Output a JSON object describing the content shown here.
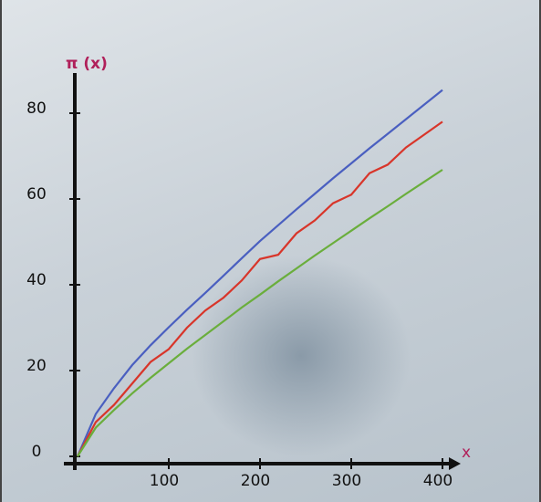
{
  "chart_data": {
    "type": "line",
    "y_label": "π (x)",
    "x_label": "x",
    "x": [
      0,
      20,
      40,
      60,
      80,
      100,
      120,
      140,
      160,
      180,
      200,
      220,
      240,
      260,
      280,
      300,
      320,
      340,
      360,
      380,
      400
    ],
    "series": [
      {
        "color": "#4a5fc0",
        "values": [
          0,
          9.9,
          15.9,
          21.3,
          25.9,
          30.1,
          34.2,
          38.1,
          42.1,
          46.2,
          50.2,
          53.9,
          57.6,
          61.2,
          64.8,
          68.3,
          71.8,
          75.2,
          78.6,
          82.0,
          85.4
        ]
      },
      {
        "color": "#d8352a",
        "values": [
          0,
          8,
          12,
          17,
          22,
          25,
          30,
          34,
          37,
          41,
          46,
          47,
          52,
          55,
          59,
          61,
          66,
          68,
          72,
          75,
          78
        ]
      },
      {
        "color": "#6aae3c",
        "values": [
          0,
          6.7,
          10.8,
          14.7,
          18.3,
          21.7,
          25.1,
          28.3,
          31.5,
          34.7,
          37.7,
          40.8,
          43.8,
          46.8,
          49.7,
          52.6,
          55.5,
          58.3,
          61.2,
          64.0,
          66.8
        ]
      }
    ],
    "xlim": [
      0,
      400
    ],
    "ylim": [
      0,
      80
    ],
    "xticks": [
      100,
      200,
      300,
      400
    ],
    "yticks": [
      0,
      20,
      40,
      60,
      80
    ]
  }
}
